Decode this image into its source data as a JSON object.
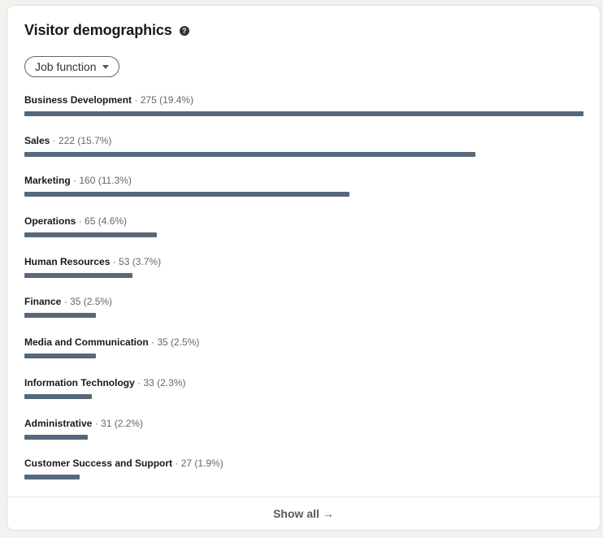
{
  "card": {
    "title": "Visitor demographics",
    "help_icon": "question-circle-icon",
    "filter": {
      "label": "Job function",
      "icon": "caret-down-icon"
    },
    "footer": {
      "label": "Show all",
      "arrow": "→"
    }
  },
  "chart_data": {
    "type": "bar",
    "orientation": "horizontal",
    "bar_color": "#56687a",
    "categories": [
      "Business Development",
      "Sales",
      "Marketing",
      "Operations",
      "Human Resources",
      "Finance",
      "Media and Communication",
      "Information Technology",
      "Administrative",
      "Customer Success and Support"
    ],
    "values": [
      275,
      222,
      160,
      65,
      53,
      35,
      35,
      33,
      31,
      27
    ],
    "percents": [
      "19.4%",
      "15.7%",
      "11.3%",
      "4.6%",
      "3.7%",
      "2.5%",
      "2.5%",
      "2.3%",
      "2.2%",
      "1.9%"
    ]
  }
}
